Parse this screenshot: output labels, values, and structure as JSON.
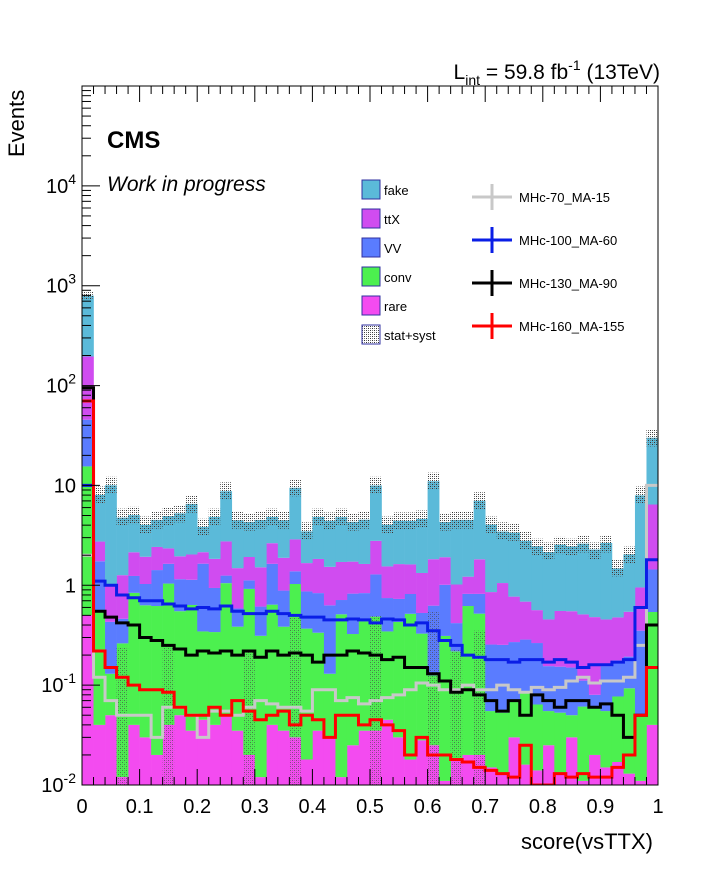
{
  "header": {
    "lumi_prefix": "L",
    "lumi_sub": "int",
    "lumi_value": " = 59.8 fb",
    "lumi_sup": "-1",
    "lumi_energy": " (13TeV)"
  },
  "labels": {
    "experiment": "CMS",
    "status": "Work in progress"
  },
  "colors": {
    "fake": "#5bbad9",
    "ttX": "#d04cf0",
    "VV": "#5a7cff",
    "conv": "#4cf04f",
    "rare": "#f34bf0",
    "hatch": "#555555",
    "MHc-70_MA-15": "#c8c8c8",
    "MHc-100_MA-60": "#0a1ee6",
    "MHc-130_MA-90": "#000000",
    "MHc-160_MA-155": "#ff0000"
  },
  "chart_data": {
    "type": "bar",
    "subtype": "stacked-histogram-log",
    "xlabel": "score(vsTTX)",
    "ylabel": "Events",
    "xlim": [
      0,
      1
    ],
    "ylim": [
      0.01,
      100000
    ],
    "yscale": "log",
    "n_bins": 50,
    "x_ticks": [
      "0",
      "0.1",
      "0.2",
      "0.3",
      "0.4",
      "0.5",
      "0.6",
      "0.7",
      "0.8",
      "0.9",
      "1"
    ],
    "y_ticks": [
      "10^-2",
      "10^-1",
      "1",
      "10",
      "10^2",
      "10^3",
      "10^4"
    ],
    "legend_position": "top-right",
    "stack_order": [
      "rare",
      "conv",
      "VV",
      "ttX",
      "fake"
    ],
    "legend": {
      "backgrounds": [
        "fake",
        "ttX",
        "VV",
        "conv",
        "rare",
        "stat+syst"
      ],
      "signals": [
        "MHc-70_MA-15",
        "MHc-100_MA-60",
        "MHc-130_MA-90",
        "MHc-160_MA-155"
      ]
    },
    "background_totals": [
      800,
      8,
      10,
      4.8,
      5,
      4,
      4.5,
      4.9,
      5.2,
      6.5,
      3.8,
      4.8,
      8.8,
      4.5,
      4.3,
      4.5,
      4.8,
      4.5,
      9.5,
      3.5,
      4.8,
      4.4,
      4.8,
      4.3,
      4.5,
      10,
      4,
      4.4,
      4.4,
      4.6,
      11,
      4.3,
      4.5,
      4.5,
      7,
      4,
      3.5,
      3.4,
      2.8,
      2.4,
      2.2,
      2.5,
      2.4,
      2.6,
      2.2,
      2.6,
      1.5,
      2,
      8,
      30
    ],
    "series": [
      {
        "name": "rare",
        "values": [
          0.5,
          0.04,
          0.05,
          0.012,
          0.04,
          0.03,
          0.02,
          0.04,
          0.05,
          0.035,
          0.045,
          0.04,
          0.05,
          0.035,
          0.02,
          0.012,
          0.04,
          0.035,
          0.03,
          0.018,
          0.035,
          0.03,
          0.012,
          0.025,
          0.035,
          0.035,
          0.045,
          0.03,
          0.018,
          0.028,
          0.025,
          0.011,
          0.018,
          0.02,
          0.02,
          0.015,
          0.013,
          0.03,
          0.016,
          0.014,
          0.025,
          0.013,
          0.03,
          0.011,
          0.02,
          0.015,
          0.017,
          0.013,
          0.011,
          0.04
        ]
      },
      {
        "name": "conv",
        "values": [
          15,
          0.5,
          0.08,
          0.25,
          0.8,
          0.6,
          0.6,
          1.0,
          0.5,
          0.6,
          0.3,
          0.3,
          1.0,
          0.35,
          0.9,
          0.3,
          0.6,
          0.35,
          1.0,
          0.35,
          0.3,
          0.1,
          0.5,
          0.3,
          0.4,
          0.45,
          0.3,
          0.4,
          0.5,
          0.3,
          0.1,
          0.3,
          0.2,
          0.6,
          0.5,
          0.04,
          0.04,
          0.04,
          0.07,
          0.05,
          0.03,
          0.04,
          0.02,
          0.05,
          0.04,
          0.04,
          0.06,
          0.08,
          0.04,
          0.5
        ]
      },
      {
        "name": "VV",
        "values": [
          30,
          1.2,
          0.3,
          0.2,
          0.4,
          0.4,
          0.8,
          0.6,
          0.6,
          0.5,
          1.3,
          0.6,
          0.2,
          0.2,
          0.2,
          0.3,
          1.0,
          0.5,
          0.35,
          0.5,
          0.5,
          0.5,
          0.2,
          0.5,
          0.4,
          0.8,
          0.4,
          0.3,
          0.3,
          0.2,
          0.5,
          0.7,
          0.2,
          0.2,
          0.3,
          0.2,
          0.2,
          0.2,
          0.2,
          0.2,
          0.1,
          0.1,
          0.1,
          0.05,
          0.02,
          0.1,
          0.1,
          0.1,
          0.3,
          0.9
        ]
      },
      {
        "name": "ttX",
        "values": [
          150,
          1.0,
          0.6,
          0.8,
          0.9,
          0.9,
          1.0,
          0.7,
          0.8,
          0.9,
          0.5,
          0.9,
          1.5,
          0.9,
          0.8,
          0.9,
          1.0,
          1.0,
          1.5,
          0.8,
          1.0,
          0.9,
          1.0,
          0.9,
          0.8,
          1.5,
          0.8,
          0.9,
          0.8,
          0.8,
          1.2,
          0.9,
          0.6,
          0.4,
          1.0,
          0.6,
          0.8,
          0.5,
          0.4,
          0.3,
          0.3,
          0.4,
          0.4,
          0.4,
          0.4,
          0.3,
          0.3,
          0.35,
          0.6,
          5
        ]
      },
      {
        "name": "fake",
        "values": [
          600,
          5.3,
          9.0,
          3.5,
          2.9,
          2.1,
          2.1,
          2.6,
          3.3,
          4.5,
          1.7,
          3.0,
          6.0,
          3.0,
          2.4,
          3.0,
          2.2,
          2.6,
          6.6,
          1.8,
          3.0,
          2.9,
          3.1,
          2.6,
          2.9,
          7.2,
          2.5,
          2.8,
          2.8,
          3.3,
          9.2,
          2.4,
          3.5,
          3.3,
          5.2,
          3.2,
          2.4,
          2.6,
          2.1,
          1.9,
          1.7,
          2.0,
          1.9,
          2.1,
          1.8,
          2.2,
          1.0,
          1.5,
          7.0,
          23.6
        ]
      }
    ],
    "signals": [
      {
        "name": "MHc-70_MA-15",
        "values": [
          2.0,
          0.12,
          0.07,
          0.05,
          0.05,
          0.05,
          0.03,
          0.06,
          0.06,
          0.05,
          0.03,
          0.055,
          0.055,
          0.05,
          0.06,
          0.07,
          0.065,
          0.06,
          0.06,
          0.055,
          0.09,
          0.09,
          0.07,
          0.075,
          0.065,
          0.07,
          0.075,
          0.08,
          0.09,
          0.105,
          0.1,
          0.09,
          0.09,
          0.1,
          0.09,
          0.09,
          0.1,
          0.09,
          0.085,
          0.095,
          0.09,
          0.095,
          0.11,
          0.12,
          0.105,
          0.11,
          0.11,
          0.12,
          0.25,
          10.0
        ]
      },
      {
        "name": "MHc-100_MA-60",
        "values": [
          10,
          1.1,
          1.0,
          0.8,
          0.75,
          0.7,
          0.7,
          0.65,
          0.62,
          0.58,
          0.6,
          0.58,
          0.62,
          0.55,
          0.52,
          0.52,
          0.55,
          0.52,
          0.5,
          0.48,
          0.48,
          0.45,
          0.45,
          0.46,
          0.45,
          0.42,
          0.46,
          0.45,
          0.4,
          0.42,
          0.35,
          0.28,
          0.25,
          0.2,
          0.19,
          0.18,
          0.18,
          0.17,
          0.18,
          0.18,
          0.17,
          0.18,
          0.17,
          0.15,
          0.16,
          0.16,
          0.17,
          0.18,
          0.6,
          1.8
        ]
      },
      {
        "name": "MHc-130_MA-90",
        "values": [
          95,
          0.55,
          0.48,
          0.42,
          0.4,
          0.3,
          0.28,
          0.25,
          0.23,
          0.2,
          0.22,
          0.21,
          0.22,
          0.2,
          0.22,
          0.19,
          0.22,
          0.2,
          0.21,
          0.2,
          0.17,
          0.2,
          0.2,
          0.22,
          0.21,
          0.2,
          0.18,
          0.19,
          0.15,
          0.15,
          0.13,
          0.11,
          0.085,
          0.09,
          0.08,
          0.07,
          0.055,
          0.07,
          0.05,
          0.08,
          0.07,
          0.06,
          0.07,
          0.07,
          0.06,
          0.065,
          0.05,
          0.03,
          0.05,
          0.4
        ]
      },
      {
        "name": "MHc-160_MA-155",
        "values": [
          70,
          0.22,
          0.15,
          0.12,
          0.1,
          0.09,
          0.09,
          0.085,
          0.06,
          0.05,
          0.05,
          0.06,
          0.05,
          0.07,
          0.055,
          0.045,
          0.05,
          0.055,
          0.04,
          0.05,
          0.045,
          0.03,
          0.05,
          0.05,
          0.04,
          0.045,
          0.04,
          0.035,
          0.02,
          0.03,
          0.02,
          0.02,
          0.018,
          0.017,
          0.015,
          0.014,
          0.013,
          0.012,
          0.025,
          0.01,
          0.009,
          0.013,
          0.012,
          0.013,
          0.012,
          0.012,
          0.015,
          0.02,
          0.05,
          0.15
        ]
      }
    ]
  }
}
